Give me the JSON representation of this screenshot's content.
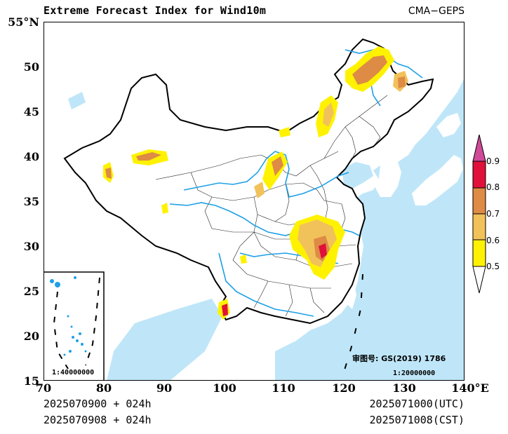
{
  "header": {
    "title": "Extreme Forecast Index for Wind10m",
    "source": "CMA−GEPS"
  },
  "axes": {
    "lat_ticks": [
      "55°N",
      "50",
      "45",
      "40",
      "35",
      "30",
      "25",
      "20",
      "15"
    ],
    "lon_ticks": [
      "70",
      "80",
      "90",
      "100",
      "110",
      "120",
      "130",
      "140°E"
    ]
  },
  "map": {
    "approval_label": "审图号: GS(2019) 1786",
    "main_scale": "1:20000000",
    "inset_scale": "1:40000000"
  },
  "footer": {
    "init_time": "2025070900 + 024h",
    "init_time_cst": "2025070908 + 024h",
    "valid_utc": "2025071000(UTC)",
    "valid_cst": "2025071008(CST)"
  },
  "legend": {
    "levels": [
      "0.9",
      "0.8",
      "0.7",
      "0.6",
      "0.5"
    ],
    "colors": [
      "#ff0000",
      "#d7281c",
      "#e08a3c",
      "#f0b050",
      "#fff200"
    ]
  },
  "colors": {
    "water": "#bfe6f8",
    "rivers": "#1ea0e6",
    "efi_05": "#fff200",
    "efi_06": "#f2c25a",
    "efi_07": "#dd8b45",
    "efi_08": "#e0103a",
    "efi_09": "#d23c8a"
  }
}
